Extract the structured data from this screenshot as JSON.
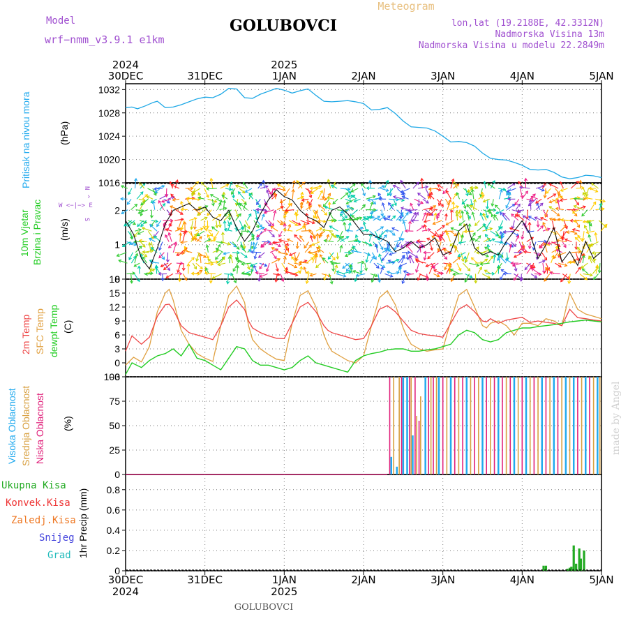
{
  "header": {
    "model_label": "Model",
    "model_name": "wrf−nmm_v3.9.1  e1km",
    "station": "GOLUBOVCI",
    "subtitle": "Meteogram",
    "coords": "lon,lat (19.2188E, 42.3312N)",
    "elevation": "Nadmorska Visina 13m",
    "model_elevation": "Nadmorska Visina u modelu 22.2849m",
    "footer": "GOLUBOVCI",
    "watermark": "made by Angel"
  },
  "colors": {
    "pressure": "#1ea8e6",
    "temp2m": "#ee4444",
    "sfc": "#e0a040",
    "dewpt": "#22cc22",
    "high_cloud": "#22aaee",
    "mid_cloud": "#d8a040",
    "low_cloud": "#e0207a",
    "total_precip": "#22aa22",
    "conv_precip": "#ee3333",
    "frozen_precip": "#ee7722",
    "snow": "#4444dd",
    "hail": "#22bbbb",
    "title": "#a050d0"
  },
  "chart_data": [
    {
      "type": "line",
      "panel": "pressure",
      "title": "",
      "ylabel": "Pritisak na nivou mora",
      "unit": "(hPa)",
      "ylim": [
        1016,
        1033
      ],
      "yticks": [
        "1016",
        "1020",
        "1024",
        "1028",
        "1032"
      ],
      "top_xticks": [
        {
          "day": "30DEC",
          "year": "2024"
        },
        {
          "day": "31DEC",
          "year": ""
        },
        {
          "day": "1JAN",
          "year": "2025"
        },
        {
          "day": "2JAN",
          "year": ""
        },
        {
          "day": "3JAN",
          "year": ""
        },
        {
          "day": "4JAN",
          "year": ""
        },
        {
          "day": "5JAN",
          "year": ""
        }
      ],
      "series": [
        {
          "x": [
            0,
            0.08,
            0.15,
            0.25,
            0.35,
            0.4,
            0.5,
            0.6,
            0.7,
            0.8,
            0.9,
            1.0,
            1.1,
            1.2,
            1.3,
            1.4,
            1.5,
            1.6,
            1.7,
            1.8,
            1.9,
            2.0,
            2.1,
            2.2,
            2.3,
            2.4,
            2.5,
            2.6,
            2.7,
            2.8,
            2.9,
            3.0,
            3.1,
            3.2,
            3.3,
            3.4,
            3.5,
            3.6,
            3.7,
            3.8,
            3.9,
            4.0,
            4.1,
            4.2,
            4.3,
            4.4,
            4.5,
            4.6,
            4.7,
            4.8,
            4.9,
            5.0,
            5.1,
            5.2,
            5.3,
            5.4,
            5.5,
            5.6,
            5.7,
            5.8,
            5.9,
            6.0
          ],
          "values": [
            1028.9,
            1029.0,
            1028.7,
            1029.2,
            1029.8,
            1030.0,
            1028.9,
            1029.0,
            1029.4,
            1029.9,
            1030.4,
            1030.7,
            1030.6,
            1031.2,
            1032.2,
            1032.1,
            1030.6,
            1030.5,
            1031.2,
            1031.7,
            1032.2,
            1031.9,
            1031.4,
            1031.8,
            1032.1,
            1031.0,
            1030.0,
            1029.9,
            1030.0,
            1030.1,
            1029.9,
            1029.6,
            1028.5,
            1028.6,
            1028.9,
            1027.9,
            1026.6,
            1025.6,
            1025.5,
            1025.4,
            1024.9,
            1024.0,
            1023.0,
            1023.1,
            1022.9,
            1022.3,
            1021.1,
            1020.2,
            1020.0,
            1019.9,
            1019.5,
            1019.0,
            1018.3,
            1018.2,
            1018.3,
            1017.8,
            1017.0,
            1016.7,
            1016.9,
            1017.3,
            1017.2,
            1016.9
          ]
        }
      ]
    },
    {
      "type": "line",
      "panel": "wind",
      "title": "",
      "ylabel": "10m Vjetar",
      "ylabel2": "Brzina i Pravac",
      "unit": "(m/s)",
      "ylim": [
        0,
        2.8
      ],
      "yticks": [
        "0",
        "1",
        "2"
      ],
      "legend_glyph": [
        "N",
        "^",
        "|",
        "W <−|−> E",
        "v",
        "S"
      ],
      "series": [
        {
          "name": "speed",
          "x": [
            0,
            0.1,
            0.2,
            0.3,
            0.4,
            0.5,
            0.6,
            0.7,
            0.8,
            0.9,
            1.0,
            1.1,
            1.2,
            1.3,
            1.4,
            1.5,
            1.6,
            1.7,
            1.8,
            1.9,
            2.0,
            2.1,
            2.2,
            2.3,
            2.4,
            2.5,
            2.6,
            2.7,
            2.8,
            2.9,
            3.0,
            3.1,
            3.2,
            3.3,
            3.4,
            3.5,
            3.6,
            3.7,
            3.8,
            3.9,
            4.0,
            4.1,
            4.2,
            4.3,
            4.4,
            4.5,
            4.6,
            4.7,
            4.8,
            4.9,
            5.0,
            5.1,
            5.2,
            5.3,
            5.4,
            5.5,
            5.6,
            5.7,
            5.8,
            5.9,
            6.0
          ],
          "values": [
            1.7,
            1.3,
            0.6,
            0.3,
            0.9,
            1.6,
            2.0,
            2.1,
            2.2,
            2.0,
            2.1,
            1.8,
            1.7,
            2.0,
            1.5,
            1.1,
            1.4,
            1.9,
            2.3,
            2.6,
            2.4,
            2.3,
            2.0,
            1.8,
            1.7,
            1.5,
            2.0,
            2.1,
            1.9,
            1.6,
            1.3,
            1.3,
            1.2,
            1.1,
            0.8,
            0.9,
            1.1,
            0.9,
            1.0,
            1.2,
            0.7,
            0.8,
            1.4,
            1.6,
            0.9,
            0.7,
            0.8,
            0.7,
            1.1,
            1.4,
            1.7,
            1.3,
            0.6,
            1.0,
            1.5,
            0.5,
            0.8,
            0.4,
            1.1,
            0.6,
            0.8
          ]
        }
      ]
    },
    {
      "type": "line",
      "panel": "temperature",
      "title": "",
      "ylabel": "2m Temp",
      "ylabel_sfc": "SFC Temp",
      "ylabel_dew": "dewpt Temp",
      "unit": "(C)",
      "ylim": [
        -3,
        18
      ],
      "yticks": [
        "−3",
        "0",
        "3",
        "6",
        "9",
        "12",
        "15",
        "18"
      ],
      "series": [
        {
          "name": "2m Temp",
          "x": [
            0,
            0.08,
            0.2,
            0.3,
            0.4,
            0.5,
            0.55,
            0.6,
            0.7,
            0.8,
            0.9,
            1.0,
            1.1,
            1.2,
            1.3,
            1.4,
            1.5,
            1.55,
            1.6,
            1.7,
            1.8,
            1.9,
            2.0,
            2.1,
            2.2,
            2.3,
            2.4,
            2.5,
            2.55,
            2.6,
            2.7,
            2.8,
            2.9,
            3.0,
            3.1,
            3.2,
            3.3,
            3.4,
            3.5,
            3.55,
            3.6,
            3.7,
            3.8,
            3.9,
            4.0,
            4.1,
            4.2,
            4.3,
            4.4,
            4.5,
            4.55,
            4.6,
            4.7,
            4.8,
            4.9,
            5.0,
            5.1,
            5.2,
            5.3,
            5.4,
            5.5,
            5.6,
            5.7,
            5.8,
            5.9,
            6.0
          ],
          "values": [
            2.5,
            5.8,
            4.0,
            5.5,
            10.0,
            12.5,
            12.6,
            11.5,
            8.0,
            6.5,
            6.0,
            5.5,
            5.0,
            8.0,
            12.0,
            13.5,
            11.5,
            9.0,
            7.5,
            6.5,
            5.8,
            5.3,
            5.2,
            8.5,
            12.0,
            13.0,
            11.0,
            8.0,
            7.0,
            6.5,
            6.0,
            5.5,
            5.0,
            5.2,
            8.0,
            11.5,
            12.3,
            11.0,
            9.0,
            8.0,
            7.0,
            6.3,
            6.0,
            5.8,
            5.5,
            8.5,
            11.5,
            12.5,
            11.0,
            9.0,
            8.8,
            9.5,
            8.5,
            9.2,
            9.5,
            9.8,
            8.7,
            9.0,
            8.7,
            8.5,
            8.0,
            11.5,
            9.7,
            9.5,
            9.2,
            9.0
          ]
        },
        {
          "name": "SFC Temp",
          "x": [
            0,
            0.1,
            0.2,
            0.3,
            0.4,
            0.5,
            0.55,
            0.6,
            0.7,
            0.8,
            0.9,
            1.0,
            1.1,
            1.2,
            1.3,
            1.4,
            1.5,
            1.55,
            1.6,
            1.7,
            1.8,
            1.9,
            2.0,
            2.1,
            2.2,
            2.3,
            2.4,
            2.5,
            2.55,
            2.6,
            2.7,
            2.8,
            2.9,
            3.0,
            3.1,
            3.2,
            3.3,
            3.4,
            3.5,
            3.55,
            3.6,
            3.7,
            3.8,
            3.9,
            4.0,
            4.1,
            4.2,
            4.3,
            4.4,
            4.5,
            4.55,
            4.6,
            4.7,
            4.8,
            4.9,
            5.0,
            5.1,
            5.2,
            5.3,
            5.4,
            5.5,
            5.6,
            5.7,
            5.8,
            5.9,
            6.0
          ],
          "values": [
            -0.5,
            1.2,
            0.2,
            3.5,
            11.0,
            15.0,
            15.8,
            13.5,
            7.0,
            4.0,
            2.0,
            1.0,
            0.3,
            8.0,
            14.5,
            16.5,
            13.0,
            8.0,
            5.0,
            3.0,
            1.8,
            0.8,
            0.5,
            8.5,
            14.5,
            15.5,
            12.0,
            6.0,
            4.0,
            2.5,
            1.5,
            0.5,
            0.0,
            1.5,
            8.0,
            14.0,
            15.5,
            12.5,
            7.5,
            5.5,
            4.0,
            3.0,
            2.5,
            2.8,
            3.0,
            9.0,
            14.5,
            15.8,
            12.0,
            8.0,
            7.5,
            8.5,
            9.0,
            8.0,
            6.0,
            8.5,
            8.5,
            8.0,
            9.5,
            9.0,
            8.0,
            15.0,
            11.5,
            10.5,
            10.0,
            9.5
          ]
        },
        {
          "name": "dewpt Temp",
          "x": [
            0,
            0.08,
            0.2,
            0.3,
            0.4,
            0.5,
            0.6,
            0.7,
            0.8,
            0.9,
            1.0,
            1.1,
            1.2,
            1.3,
            1.4,
            1.5,
            1.6,
            1.7,
            1.8,
            1.9,
            2.0,
            2.1,
            2.2,
            2.3,
            2.4,
            2.5,
            2.6,
            2.7,
            2.8,
            2.9,
            3.0,
            3.1,
            3.2,
            3.3,
            3.4,
            3.5,
            3.6,
            3.7,
            3.8,
            3.9,
            4.0,
            4.1,
            4.2,
            4.3,
            4.4,
            4.5,
            4.6,
            4.7,
            4.8,
            4.9,
            5.0,
            5.1,
            5.2,
            5.3,
            5.4,
            5.5,
            5.6,
            5.7,
            5.8,
            5.9,
            6.0
          ],
          "values": [
            -2.5,
            0.0,
            -1.0,
            0.5,
            1.5,
            2.0,
            3.0,
            1.5,
            4.0,
            1.0,
            0.5,
            -0.5,
            -1.5,
            1.0,
            3.5,
            3.0,
            0.5,
            -0.5,
            -0.5,
            -1.0,
            -1.5,
            -1.0,
            0.5,
            1.5,
            0.0,
            -0.5,
            -1.0,
            -1.5,
            -2.0,
            0.5,
            1.5,
            2.0,
            2.3,
            2.8,
            3.0,
            3.0,
            2.5,
            2.5,
            2.8,
            3.0,
            3.5,
            4.0,
            6.0,
            7.0,
            6.5,
            5.0,
            4.5,
            5.0,
            6.5,
            7.0,
            7.5,
            7.5,
            7.8,
            8.0,
            8.2,
            8.5,
            8.8,
            9.0,
            9.2,
            9.0,
            8.8
          ]
        }
      ]
    },
    {
      "type": "bar",
      "panel": "cloud",
      "title": "",
      "ylabel_high": "Visoka Oblacnost",
      "ylabel_mid": "Srednja Oblacnost",
      "ylabel_low": "Niska Oblacnost",
      "unit": "(%)",
      "ylim": [
        0,
        100
      ],
      "yticks": [
        "0",
        "25",
        "50",
        "75",
        "100"
      ],
      "series": [
        {
          "name": "Visoka Oblacnost",
          "x": [
            3.35,
            3.42,
            3.5,
            3.55,
            3.62,
            3.78,
            3.95,
            4.1,
            4.3,
            4.5,
            4.7,
            4.9,
            5.05,
            5.25,
            5.4,
            5.55,
            5.65,
            5.8,
            5.95
          ],
          "values": [
            18,
            8,
            100,
            100,
            40,
            100,
            100,
            100,
            100,
            100,
            100,
            100,
            100,
            100,
            100,
            100,
            100,
            100,
            100
          ]
        },
        {
          "name": "Srednja Oblacnost",
          "x": [
            3.38,
            3.45,
            3.6,
            3.67,
            3.72,
            3.85,
            3.92,
            4.05,
            4.2,
            4.35,
            4.45,
            4.6,
            4.8,
            4.95,
            5.1,
            5.2,
            5.35,
            5.5,
            5.6,
            5.75,
            5.9,
            5.98
          ],
          "values": [
            100,
            100,
            100,
            60,
            80,
            100,
            100,
            100,
            100,
            100,
            100,
            100,
            100,
            100,
            100,
            100,
            100,
            100,
            100,
            100,
            100,
            100
          ]
        },
        {
          "name": "Niska Oblacnost",
          "x": [
            3.33,
            3.48,
            3.58,
            3.65,
            3.7,
            3.82,
            3.88,
            4.0,
            4.15,
            4.25,
            4.4,
            4.55,
            4.65,
            4.75,
            4.85,
            5.0,
            5.15,
            5.3,
            5.45,
            5.7,
            5.85
          ],
          "values": [
            100,
            100,
            100,
            100,
            55,
            100,
            100,
            100,
            100,
            100,
            100,
            100,
            100,
            100,
            100,
            100,
            100,
            100,
            100,
            100,
            100
          ]
        }
      ]
    },
    {
      "type": "bar",
      "panel": "precip",
      "title": "",
      "ylabel": "1hr Precip (mm)",
      "legend": [
        "Ukupna Kisa",
        "Konvek.Kisa",
        "Zaledj.Kisa",
        "Snijeg",
        "Grad"
      ],
      "ylim": [
        0,
        0.95
      ],
      "yticks": [
        "0",
        "0.2",
        "0.4",
        "0.6",
        "0.8"
      ],
      "bottom_xticks": [
        {
          "day": "30DEC",
          "year": "2024"
        },
        {
          "day": "31DEC",
          "year": ""
        },
        {
          "day": "1JAN",
          "year": "2025"
        },
        {
          "day": "2JAN",
          "year": ""
        },
        {
          "day": "3JAN",
          "year": ""
        },
        {
          "day": "4JAN",
          "year": ""
        },
        {
          "day": "5JAN",
          "year": ""
        }
      ],
      "series": [
        {
          "name": "Ukupna Kisa",
          "x": [
            5.27,
            5.3,
            5.57,
            5.6,
            5.62,
            5.65,
            5.68,
            5.72,
            5.74,
            5.78
          ],
          "values": [
            0.05,
            0.05,
            0.02,
            0.03,
            0.04,
            0.25,
            0.07,
            0.22,
            0.12,
            0.2
          ]
        }
      ]
    }
  ]
}
